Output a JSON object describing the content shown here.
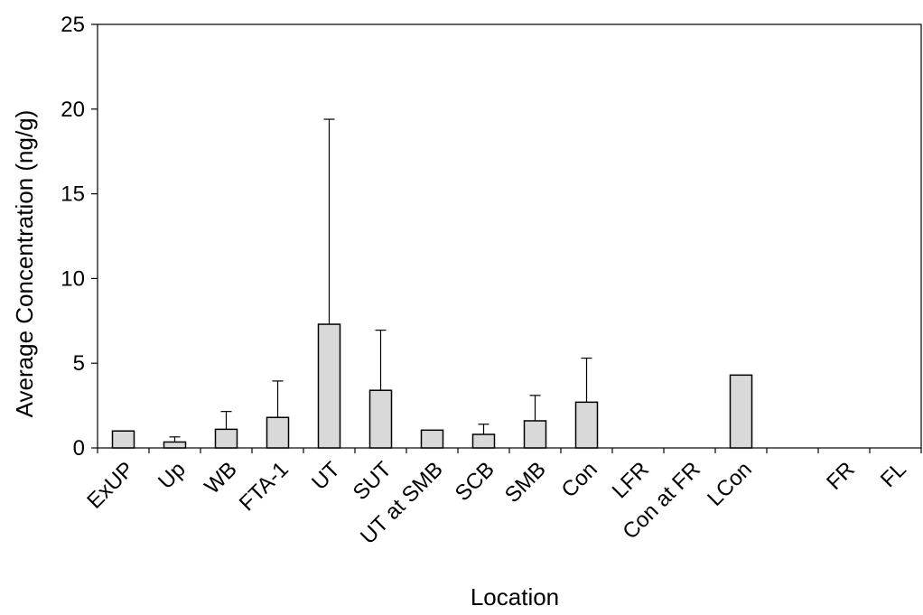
{
  "chart_data": {
    "type": "bar",
    "xlabel": "Location",
    "ylabel": "Average Concentration (ng/g)",
    "ylim": [
      0,
      25
    ],
    "yticks": [
      0,
      5,
      10,
      15,
      20,
      25
    ],
    "ytick_labels": [
      "0",
      "5",
      "10",
      "15",
      "20",
      "25"
    ],
    "grid": false,
    "legend": "none",
    "bar_color": "#d9d9d9",
    "bar_edge_color": "#000000",
    "categories": [
      "ExUP",
      "Up",
      "WB",
      "FTA-1",
      "UT",
      "SUT",
      "UT at SMB",
      "SCB",
      "SMB",
      "Con",
      "LFR",
      "Con at FR",
      "LCon",
      "",
      "FR",
      "FL"
    ],
    "values": [
      1.0,
      0.35,
      1.1,
      1.8,
      7.3,
      3.4,
      1.05,
      0.8,
      1.6,
      2.7,
      null,
      null,
      4.3,
      null,
      null,
      null
    ],
    "error_upper": [
      null,
      0.65,
      2.15,
      3.95,
      19.4,
      6.95,
      null,
      1.4,
      3.1,
      5.3,
      null,
      null,
      null,
      null,
      null,
      null
    ]
  }
}
